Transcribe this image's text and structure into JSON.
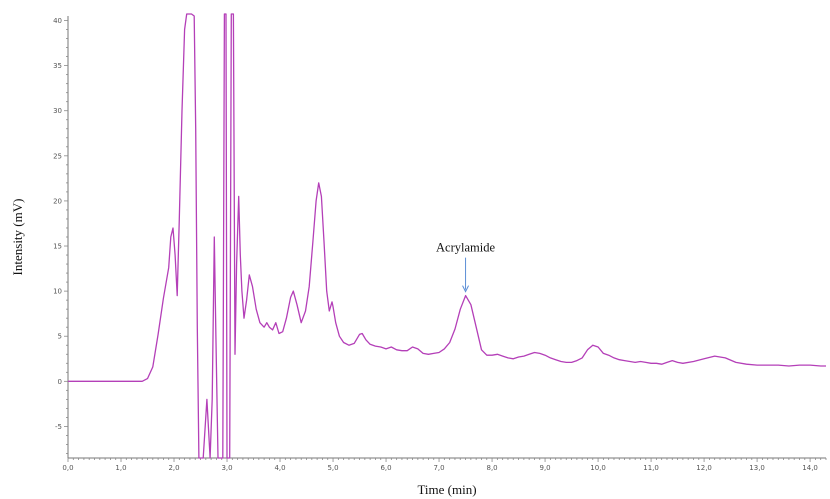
{
  "chart_data": {
    "type": "line",
    "title": "",
    "xlabel": "Time (min)",
    "ylabel": "Intensity (mV)",
    "xlim": [
      0,
      14.3
    ],
    "ylim": [
      -8.5,
      40.5
    ],
    "x_ticks": [
      0,
      1,
      2,
      3,
      4,
      5,
      6,
      7,
      8,
      9,
      10,
      11,
      12,
      13,
      14
    ],
    "x_tick_labels": [
      "0,0",
      "1,0",
      "2,0",
      "3,0",
      "4,0",
      "5,0",
      "6,0",
      "7,0",
      "8,0",
      "9,0",
      "10,0",
      "11,0",
      "12,0",
      "13,0",
      "14,0"
    ],
    "y_ticks": [
      -5,
      0,
      5,
      10,
      15,
      20,
      25,
      30,
      35,
      40
    ],
    "y_tick_labels": [
      "-5",
      "0",
      "5",
      "10",
      "15",
      "20",
      "25",
      "30",
      "35",
      "40"
    ],
    "grid": false,
    "line_color": "#b43fb8",
    "arrow_color": "#5b8fd6",
    "series": [
      {
        "points": [
          [
            0.0,
            0.0
          ],
          [
            1.4,
            0.0
          ],
          [
            1.5,
            0.3
          ],
          [
            1.6,
            1.6
          ],
          [
            1.7,
            5.2
          ],
          [
            1.8,
            9.2
          ],
          [
            1.9,
            12.6
          ],
          [
            1.94,
            16.0
          ],
          [
            1.98,
            17.0
          ],
          [
            2.02,
            14.0
          ],
          [
            2.06,
            9.5
          ],
          [
            2.1,
            18.0
          ],
          [
            2.15,
            30.0
          ],
          [
            2.2,
            39.0
          ],
          [
            2.24,
            41.0
          ],
          [
            2.33,
            41.0
          ],
          [
            2.38,
            40.5
          ],
          [
            2.41,
            28.0
          ],
          [
            2.44,
            6.0
          ],
          [
            2.47,
            -9.0
          ],
          [
            2.55,
            -9.0
          ],
          [
            2.62,
            -2.0
          ],
          [
            2.68,
            -9.0
          ],
          [
            2.72,
            -2.0
          ],
          [
            2.76,
            16.0
          ],
          [
            2.79,
            5.0
          ],
          [
            2.83,
            -9.0
          ],
          [
            2.92,
            -9.0
          ],
          [
            2.95,
            41.0
          ],
          [
            2.98,
            41.0
          ],
          [
            3.0,
            -9.0
          ],
          [
            3.05,
            -9.0
          ],
          [
            3.08,
            41.0
          ],
          [
            3.12,
            41.0
          ],
          [
            3.15,
            3.0
          ],
          [
            3.18,
            13.0
          ],
          [
            3.22,
            20.5
          ],
          [
            3.25,
            14.0
          ],
          [
            3.28,
            10.0
          ],
          [
            3.32,
            7.0
          ],
          [
            3.37,
            9.0
          ],
          [
            3.42,
            11.8
          ],
          [
            3.48,
            10.5
          ],
          [
            3.55,
            8.0
          ],
          [
            3.62,
            6.5
          ],
          [
            3.7,
            6.0
          ],
          [
            3.75,
            6.5
          ],
          [
            3.8,
            6.0
          ],
          [
            3.86,
            5.7
          ],
          [
            3.92,
            6.5
          ],
          [
            3.98,
            5.3
          ],
          [
            4.05,
            5.5
          ],
          [
            4.12,
            7.0
          ],
          [
            4.2,
            9.3
          ],
          [
            4.25,
            10.0
          ],
          [
            4.32,
            8.5
          ],
          [
            4.4,
            6.5
          ],
          [
            4.48,
            7.8
          ],
          [
            4.55,
            10.5
          ],
          [
            4.62,
            15.5
          ],
          [
            4.68,
            20.0
          ],
          [
            4.73,
            22.0
          ],
          [
            4.78,
            20.5
          ],
          [
            4.83,
            15.5
          ],
          [
            4.88,
            10.0
          ],
          [
            4.93,
            7.8
          ],
          [
            4.98,
            8.8
          ],
          [
            5.0,
            8.3
          ],
          [
            5.05,
            6.5
          ],
          [
            5.12,
            5.0
          ],
          [
            5.2,
            4.3
          ],
          [
            5.3,
            4.0
          ],
          [
            5.4,
            4.2
          ],
          [
            5.5,
            5.2
          ],
          [
            5.55,
            5.3
          ],
          [
            5.62,
            4.6
          ],
          [
            5.7,
            4.1
          ],
          [
            5.8,
            3.9
          ],
          [
            5.9,
            3.8
          ],
          [
            6.0,
            3.6
          ],
          [
            6.1,
            3.8
          ],
          [
            6.2,
            3.5
          ],
          [
            6.3,
            3.4
          ],
          [
            6.4,
            3.4
          ],
          [
            6.5,
            3.8
          ],
          [
            6.6,
            3.6
          ],
          [
            6.7,
            3.1
          ],
          [
            6.8,
            3.0
          ],
          [
            6.9,
            3.1
          ],
          [
            7.0,
            3.2
          ],
          [
            7.1,
            3.6
          ],
          [
            7.2,
            4.3
          ],
          [
            7.3,
            5.8
          ],
          [
            7.4,
            8.0
          ],
          [
            7.5,
            9.5
          ],
          [
            7.6,
            8.5
          ],
          [
            7.7,
            6.0
          ],
          [
            7.8,
            3.5
          ],
          [
            7.9,
            2.9
          ],
          [
            8.0,
            2.9
          ],
          [
            8.1,
            3.0
          ],
          [
            8.2,
            2.8
          ],
          [
            8.3,
            2.6
          ],
          [
            8.4,
            2.5
          ],
          [
            8.5,
            2.7
          ],
          [
            8.6,
            2.8
          ],
          [
            8.7,
            3.0
          ],
          [
            8.8,
            3.2
          ],
          [
            8.9,
            3.1
          ],
          [
            9.0,
            2.9
          ],
          [
            9.1,
            2.6
          ],
          [
            9.2,
            2.4
          ],
          [
            9.3,
            2.2
          ],
          [
            9.4,
            2.1
          ],
          [
            9.5,
            2.1
          ],
          [
            9.6,
            2.3
          ],
          [
            9.7,
            2.6
          ],
          [
            9.8,
            3.5
          ],
          [
            9.9,
            4.0
          ],
          [
            10.0,
            3.8
          ],
          [
            10.1,
            3.1
          ],
          [
            10.2,
            2.9
          ],
          [
            10.3,
            2.6
          ],
          [
            10.4,
            2.4
          ],
          [
            10.5,
            2.3
          ],
          [
            10.6,
            2.2
          ],
          [
            10.7,
            2.1
          ],
          [
            10.8,
            2.2
          ],
          [
            10.9,
            2.1
          ],
          [
            11.0,
            2.0
          ],
          [
            11.1,
            2.0
          ],
          [
            11.2,
            1.9
          ],
          [
            11.3,
            2.1
          ],
          [
            11.4,
            2.3
          ],
          [
            11.5,
            2.1
          ],
          [
            11.6,
            2.0
          ],
          [
            11.8,
            2.2
          ],
          [
            12.0,
            2.5
          ],
          [
            12.2,
            2.8
          ],
          [
            12.4,
            2.6
          ],
          [
            12.6,
            2.1
          ],
          [
            12.8,
            1.9
          ],
          [
            13.0,
            1.8
          ],
          [
            13.2,
            1.8
          ],
          [
            13.4,
            1.8
          ],
          [
            13.6,
            1.7
          ],
          [
            13.8,
            1.8
          ],
          [
            14.0,
            1.8
          ],
          [
            14.2,
            1.7
          ],
          [
            14.3,
            1.7
          ]
        ]
      }
    ],
    "annotations": [
      {
        "text": "Acrylamide",
        "x": 7.5,
        "y": 9.5
      }
    ]
  }
}
